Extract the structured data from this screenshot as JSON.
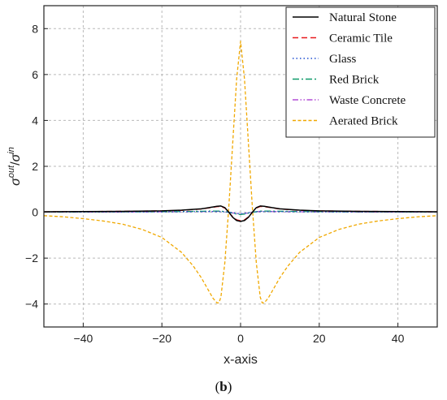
{
  "caption": {
    "open": "(",
    "letter": "b",
    "close": ")"
  },
  "chart_data": {
    "type": "line",
    "xlabel": "x-axis",
    "ylabel_parts": {
      "sigma1": "σ",
      "sup1": "out",
      "slash": "/",
      "sigma2": "σ",
      "sup2": "in"
    },
    "xlim": [
      -50,
      50
    ],
    "ylim": [
      -5,
      9
    ],
    "xticks": [
      -40,
      -20,
      0,
      20,
      40
    ],
    "yticks": [
      -4,
      -2,
      0,
      2,
      4,
      6,
      8
    ],
    "xtick_labels": [
      "−40",
      "−20",
      "0",
      "20",
      "40"
    ],
    "ytick_labels": [
      "−4",
      "−2",
      "0",
      "2",
      "4",
      "6",
      "8"
    ],
    "grid": true,
    "legend_position": "top-right",
    "series": [
      {
        "name": "Natural Stone",
        "color": "#000000",
        "dash": "solid",
        "x": [
          -50,
          -40,
          -30,
          -20,
          -15,
          -10,
          -8,
          -6,
          -5,
          -4,
          -3,
          -2,
          -1,
          0,
          1,
          2,
          3,
          4,
          5,
          6,
          8,
          10,
          15,
          20,
          30,
          40,
          50
        ],
        "y": [
          0.02,
          0.03,
          0.04,
          0.06,
          0.09,
          0.15,
          0.2,
          0.26,
          0.27,
          0.2,
          0.0,
          -0.22,
          -0.36,
          -0.4,
          -0.36,
          -0.22,
          0.0,
          0.2,
          0.27,
          0.26,
          0.2,
          0.15,
          0.09,
          0.06,
          0.04,
          0.03,
          0.02
        ]
      },
      {
        "name": "Ceramic Tile",
        "color": "#e8191c",
        "dash": "dashed",
        "x": [
          -50,
          -40,
          -30,
          -20,
          -15,
          -10,
          -8,
          -6,
          -5,
          -4,
          -3,
          -2,
          -1,
          0,
          1,
          2,
          3,
          4,
          5,
          6,
          8,
          10,
          15,
          20,
          30,
          40,
          50
        ],
        "y": [
          0.02,
          0.03,
          0.04,
          0.06,
          0.08,
          0.14,
          0.19,
          0.24,
          0.25,
          0.18,
          0.0,
          -0.2,
          -0.33,
          -0.37,
          -0.33,
          -0.2,
          0.0,
          0.18,
          0.25,
          0.24,
          0.19,
          0.14,
          0.08,
          0.06,
          0.04,
          0.03,
          0.02
        ]
      },
      {
        "name": "Glass",
        "color": "#1f4fd1",
        "dash": "dotted",
        "x": [
          -50,
          -30,
          -15,
          -8,
          -5,
          -3,
          -1,
          0,
          1,
          3,
          5,
          8,
          15,
          30,
          50
        ],
        "y": [
          0.01,
          0.01,
          0.02,
          0.03,
          0.03,
          0.0,
          -0.05,
          -0.06,
          -0.05,
          0.0,
          0.03,
          0.03,
          0.02,
          0.01,
          0.01
        ]
      },
      {
        "name": "Red Brick",
        "color": "#0f9a6a",
        "dash": "dashdot",
        "x": [
          -50,
          -30,
          -15,
          -8,
          -5,
          -3,
          -1,
          0,
          1,
          3,
          5,
          8,
          15,
          30,
          50
        ],
        "y": [
          0.01,
          0.02,
          0.03,
          0.05,
          0.05,
          0.0,
          -0.08,
          -0.1,
          -0.08,
          0.0,
          0.05,
          0.05,
          0.03,
          0.02,
          0.01
        ]
      },
      {
        "name": "Waste Concrete",
        "color": "#b44fd6",
        "dash": "dashdotdot",
        "x": [
          -50,
          -30,
          -15,
          -8,
          -5,
          -3,
          -1,
          0,
          1,
          3,
          5,
          8,
          15,
          30,
          50
        ],
        "y": [
          0.01,
          0.01,
          0.02,
          0.03,
          0.04,
          0.0,
          -0.06,
          -0.07,
          -0.06,
          0.0,
          0.04,
          0.03,
          0.02,
          0.01,
          0.01
        ]
      },
      {
        "name": "Aerated Brick",
        "color": "#f0a800",
        "dash": "shortdash",
        "x": [
          -50,
          -45,
          -40,
          -35,
          -30,
          -25,
          -20,
          -15,
          -12,
          -10,
          -8,
          -7,
          -6,
          -5.5,
          -5,
          -4,
          -3,
          -2,
          -1,
          0,
          1,
          2,
          3,
          4,
          5,
          5.5,
          6,
          7,
          8,
          10,
          12,
          15,
          20,
          25,
          30,
          35,
          40,
          45,
          50
        ],
        "y": [
          -0.15,
          -0.2,
          -0.28,
          -0.38,
          -0.52,
          -0.75,
          -1.1,
          -1.75,
          -2.35,
          -2.85,
          -3.45,
          -3.75,
          -3.95,
          -3.95,
          -3.7,
          -2.2,
          0.2,
          3.0,
          5.8,
          7.45,
          5.8,
          3.0,
          0.2,
          -2.2,
          -3.7,
          -3.95,
          -3.95,
          -3.75,
          -3.45,
          -2.85,
          -2.35,
          -1.75,
          -1.1,
          -0.75,
          -0.52,
          -0.38,
          -0.28,
          -0.2,
          -0.15
        ]
      }
    ]
  }
}
